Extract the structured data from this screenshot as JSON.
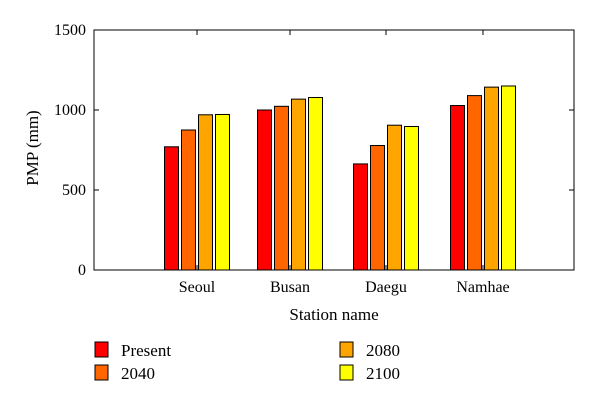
{
  "chart_data": {
    "type": "bar",
    "title": "",
    "xlabel": "Station name",
    "ylabel": "PMP (mm)",
    "ylim": [
      0,
      1500
    ],
    "yticks": [
      0,
      500,
      1000,
      1500
    ],
    "grid": false,
    "legend_position": "bottom",
    "categories": [
      "Seoul",
      "Busan",
      "Daegu",
      "Namhae"
    ],
    "series": [
      {
        "name": "Present",
        "color": "#ff0000",
        "values": [
          770,
          1000,
          663,
          1028
        ]
      },
      {
        "name": "2040",
        "color": "#ff6600",
        "values": [
          875,
          1023,
          778,
          1090
        ]
      },
      {
        "name": "2080",
        "color": "#ffa500",
        "values": [
          970,
          1068,
          905,
          1143
        ]
      },
      {
        "name": "2100",
        "color": "#ffff00",
        "values": [
          972,
          1078,
          897,
          1150
        ]
      }
    ]
  }
}
